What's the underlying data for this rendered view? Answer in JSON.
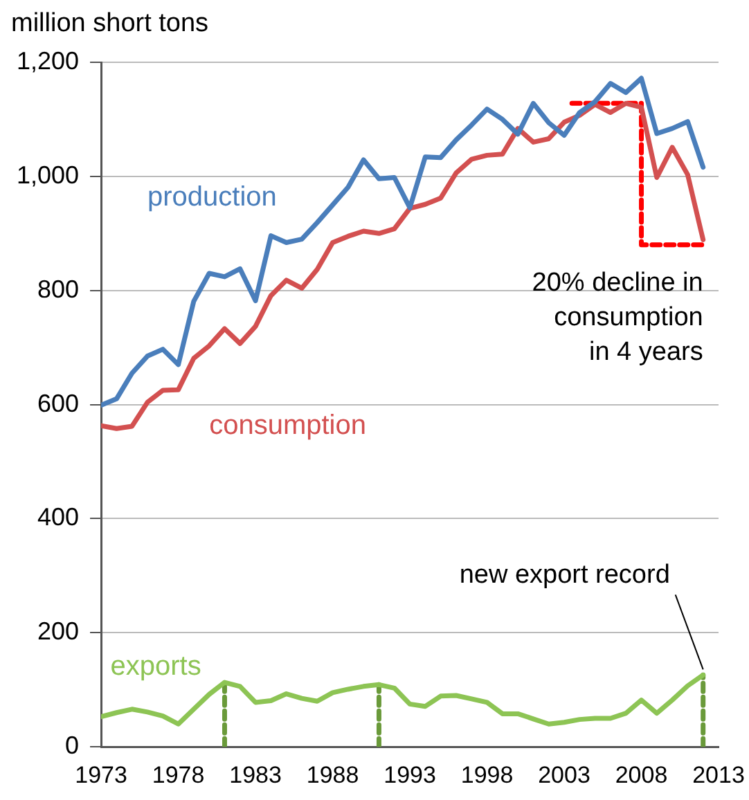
{
  "chart_data": {
    "type": "line",
    "ylabel": "million short tons",
    "x": [
      1973,
      1974,
      1975,
      1976,
      1977,
      1978,
      1979,
      1980,
      1981,
      1982,
      1983,
      1984,
      1985,
      1986,
      1987,
      1988,
      1989,
      1990,
      1991,
      1992,
      1993,
      1994,
      1995,
      1996,
      1997,
      1998,
      1999,
      2000,
      2001,
      2002,
      2003,
      2004,
      2005,
      2006,
      2007,
      2008,
      2009,
      2010,
      2011,
      2012
    ],
    "series": [
      {
        "name": "production",
        "color": "#4a7ebb",
        "values": [
          599,
          610,
          655,
          685,
          697,
          670,
          781,
          830,
          824,
          838,
          782,
          896,
          884,
          890,
          919,
          950,
          981,
          1029,
          996,
          998,
          945,
          1034,
          1033,
          1064,
          1090,
          1118,
          1100,
          1074,
          1128,
          1094,
          1072,
          1112,
          1131,
          1163,
          1147,
          1172,
          1075,
          1084,
          1096,
          1016
        ]
      },
      {
        "name": "consumption",
        "color": "#d35050",
        "values": [
          563,
          558,
          562,
          604,
          625,
          626,
          681,
          703,
          733,
          707,
          737,
          791,
          818,
          804,
          837,
          884,
          895,
          904,
          900,
          908,
          944,
          951,
          962,
          1006,
          1030,
          1037,
          1039,
          1084,
          1060,
          1066,
          1095,
          1107,
          1126,
          1112,
          1128,
          1121,
          998,
          1051,
          1003,
          889
        ]
      },
      {
        "name": "exports",
        "color": "#8dc454",
        "values": [
          53,
          60,
          66,
          61,
          54,
          40,
          66,
          92,
          113,
          106,
          78,
          81,
          93,
          85,
          80,
          95,
          101,
          106,
          109,
          103,
          75,
          71,
          89,
          90,
          84,
          78,
          58,
          58,
          49,
          40,
          43,
          48,
          50,
          50,
          59,
          82,
          59,
          82,
          107,
          126
        ]
      },
      {
        "color": "#6a9a3a",
        "line_style": "dashed",
        "x": [
          1981,
          1981
        ],
        "values": [
          0,
          113
        ]
      },
      {
        "color": "#6a9a3a",
        "line_style": "dashed",
        "x": [
          1991,
          1991
        ],
        "values": [
          0,
          109
        ]
      },
      {
        "color": "#6a9a3a",
        "line_style": "dashed",
        "x": [
          2012,
          2012
        ],
        "values": [
          0,
          126
        ]
      },
      {
        "color": "#ff0000",
        "line_style": "dashed",
        "x": [
          2003.5,
          2008,
          2008,
          2012
        ],
        "values": [
          1128,
          1128,
          880,
          880
        ]
      }
    ],
    "xlim": [
      1973,
      2013
    ],
    "xticks": [
      1973,
      1978,
      1983,
      1988,
      1993,
      1998,
      2003,
      2008,
      2013
    ],
    "ylim": [
      0,
      1200
    ],
    "yticks": [
      {
        "value": 0,
        "label": "0"
      },
      {
        "value": 200,
        "label": "200"
      },
      {
        "value": 400,
        "label": "400"
      },
      {
        "value": 600,
        "label": "600"
      },
      {
        "value": 800,
        "label": "800"
      },
      {
        "value": 1000,
        "label": "1,000"
      },
      {
        "value": 1200,
        "label": "1,200"
      }
    ],
    "grid": "y",
    "legend": false,
    "marker": "none",
    "annotations": [
      {
        "text": "20% decline in\nconsumption\nin 4 years",
        "x": 2012,
        "y": 880
      },
      {
        "text": "new export record",
        "x": 2012,
        "y": 126
      }
    ]
  }
}
